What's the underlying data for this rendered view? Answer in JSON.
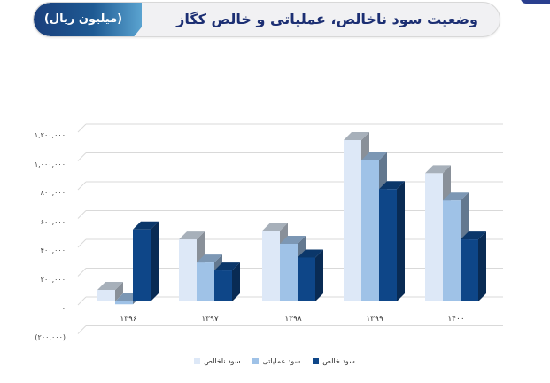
{
  "header": {
    "title": "وضعیت سود ناخالص، عملیاتی و خالص کگاز",
    "unit": "(میلیون ریال)"
  },
  "colors": {
    "header_title": "#1c2f73",
    "header_pill": "#1e5a93",
    "gross": "#dde8f7",
    "operating": "#9fc2e7",
    "net": "#0e4688"
  },
  "legend": [
    {
      "label": "سود ناخالص",
      "color": "#dde8f7"
    },
    {
      "label": "سود عملیاتی",
      "color": "#9fc2e7"
    },
    {
      "label": "سود خالص",
      "color": "#0e4688"
    }
  ],
  "y_ticks": [
    "۱,۲۰۰,۰۰۰",
    "۱,۰۰۰,۰۰۰",
    "۸۰۰,۰۰۰",
    "۶۰۰,۰۰۰",
    "۴۰۰,۰۰۰",
    "۲۰۰,۰۰۰",
    "۰",
    "(۲۰۰,۰۰۰)"
  ],
  "x_labels": [
    "۱۳۹۶",
    "۱۳۹۷",
    "۱۳۹۸",
    "۱۳۹۹",
    "۱۴۰۰"
  ],
  "chart_data": {
    "type": "bar",
    "title": "وضعیت سود ناخالص، عملیاتی و خالص کگاز",
    "subtitle": "(میلیون ریال)",
    "xlabel": "",
    "ylabel": "میلیون ریال",
    "categories": [
      "1396",
      "1397",
      "1398",
      "1399",
      "1400"
    ],
    "series": [
      {
        "name": "سود ناخالص",
        "values": [
          80000,
          430000,
          490000,
          1120000,
          890000
        ]
      },
      {
        "name": "سود عملیاتی",
        "values": [
          -20000,
          270000,
          400000,
          980000,
          700000
        ]
      },
      {
        "name": "سود خالص",
        "values": [
          500000,
          215000,
          305000,
          780000,
          430000
        ]
      }
    ],
    "ylim": [
      -200000,
      1200000
    ],
    "y_tick_step": 200000,
    "grid": true,
    "legend_position": "bottom",
    "style": "3d-clustered-column"
  }
}
